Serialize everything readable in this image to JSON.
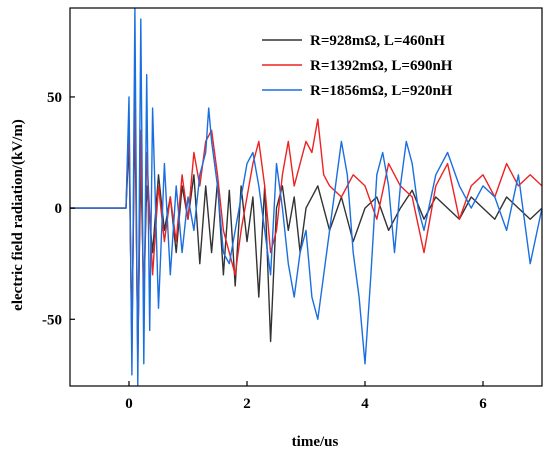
{
  "chart_data": {
    "type": "line",
    "title": "",
    "xlabel": "time/us",
    "ylabel": "electric field radiation/(kV/m)",
    "xlim": [
      -1,
      7
    ],
    "ylim": [
      -80,
      90
    ],
    "x_ticks": [
      0,
      2,
      4,
      6
    ],
    "y_ticks": [
      -50,
      0,
      50
    ],
    "x_tick_labels": [
      "0",
      "2",
      "4",
      "6"
    ],
    "y_tick_labels": [
      "-50",
      "0",
      "50"
    ],
    "grid": false,
    "legend_position": "top-right",
    "series": [
      {
        "name": "R=928mΩ, L=460nH",
        "color": "#333333",
        "x": [
          -1.0,
          -0.05,
          0.0,
          0.05,
          0.1,
          0.15,
          0.2,
          0.25,
          0.3,
          0.4,
          0.5,
          0.6,
          0.7,
          0.8,
          0.9,
          1.0,
          1.1,
          1.2,
          1.3,
          1.4,
          1.5,
          1.6,
          1.7,
          1.8,
          1.9,
          2.0,
          2.1,
          2.2,
          2.3,
          2.4,
          2.5,
          2.6,
          2.7,
          2.8,
          2.9,
          3.0,
          3.2,
          3.4,
          3.6,
          3.8,
          4.0,
          4.2,
          4.4,
          4.6,
          4.8,
          5.0,
          5.2,
          5.4,
          5.6,
          5.8,
          6.0,
          6.2,
          6.4,
          6.6,
          6.8,
          7.0
        ],
        "y": [
          0,
          0,
          30,
          -60,
          45,
          -65,
          20,
          -40,
          10,
          -20,
          15,
          -10,
          5,
          -20,
          10,
          -5,
          15,
          -25,
          10,
          -20,
          12,
          -30,
          8,
          -35,
          10,
          -15,
          5,
          -40,
          10,
          -60,
          0,
          10,
          -10,
          5,
          -20,
          0,
          10,
          -10,
          5,
          -15,
          0,
          5,
          -10,
          0,
          8,
          -5,
          5,
          0,
          -5,
          5,
          0,
          -5,
          5,
          0,
          -5,
          0
        ]
      },
      {
        "name": "R=1392mΩ, L=690nH",
        "color": "#ee2222",
        "x": [
          -1.0,
          -0.05,
          0.0,
          0.05,
          0.1,
          0.15,
          0.2,
          0.25,
          0.3,
          0.4,
          0.5,
          0.6,
          0.7,
          0.8,
          0.9,
          1.0,
          1.1,
          1.2,
          1.3,
          1.4,
          1.5,
          1.6,
          1.7,
          1.8,
          1.9,
          2.0,
          2.1,
          2.2,
          2.3,
          2.4,
          2.5,
          2.6,
          2.7,
          2.8,
          2.9,
          3.0,
          3.1,
          3.2,
          3.3,
          3.4,
          3.6,
          3.8,
          4.0,
          4.2,
          4.4,
          4.6,
          4.8,
          5.0,
          5.2,
          5.4,
          5.6,
          5.8,
          6.0,
          6.2,
          6.4,
          6.6,
          6.8,
          7.0
        ],
        "y": [
          0,
          0,
          40,
          -65,
          60,
          -70,
          35,
          -45,
          25,
          -30,
          10,
          -15,
          5,
          -15,
          15,
          -5,
          25,
          10,
          30,
          35,
          15,
          -10,
          -20,
          -30,
          -10,
          5,
          20,
          30,
          10,
          -20,
          -10,
          15,
          30,
          10,
          20,
          30,
          25,
          40,
          15,
          10,
          5,
          15,
          10,
          -5,
          20,
          10,
          5,
          -20,
          10,
          20,
          -5,
          10,
          15,
          5,
          20,
          10,
          15,
          10
        ]
      },
      {
        "name": "R=1856mΩ, L=920nH",
        "color": "#1a6fe0",
        "x": [
          -1.0,
          -0.05,
          0.0,
          0.05,
          0.1,
          0.15,
          0.2,
          0.25,
          0.3,
          0.35,
          0.4,
          0.5,
          0.6,
          0.7,
          0.8,
          0.9,
          1.0,
          1.1,
          1.2,
          1.3,
          1.35,
          1.4,
          1.5,
          1.6,
          1.7,
          1.8,
          1.9,
          2.0,
          2.1,
          2.2,
          2.3,
          2.4,
          2.5,
          2.6,
          2.7,
          2.8,
          2.9,
          3.0,
          3.1,
          3.2,
          3.3,
          3.4,
          3.5,
          3.6,
          3.7,
          3.8,
          3.9,
          4.0,
          4.1,
          4.2,
          4.3,
          4.4,
          4.5,
          4.6,
          4.7,
          4.8,
          4.9,
          5.0,
          5.2,
          5.4,
          5.6,
          5.8,
          6.0,
          6.2,
          6.4,
          6.6,
          6.8,
          7.0
        ],
        "y": [
          0,
          0,
          50,
          -75,
          90,
          -80,
          85,
          -70,
          60,
          -55,
          45,
          -45,
          20,
          -30,
          10,
          -20,
          5,
          -10,
          15,
          25,
          45,
          30,
          10,
          -20,
          -25,
          -10,
          5,
          20,
          25,
          10,
          -10,
          -30,
          20,
          0,
          -25,
          -40,
          -20,
          -10,
          -40,
          -50,
          -30,
          -10,
          10,
          30,
          15,
          -20,
          -40,
          -70,
          -30,
          15,
          25,
          10,
          -20,
          10,
          30,
          20,
          0,
          -10,
          15,
          25,
          10,
          0,
          10,
          5,
          -10,
          15,
          -25,
          0
        ]
      }
    ]
  }
}
